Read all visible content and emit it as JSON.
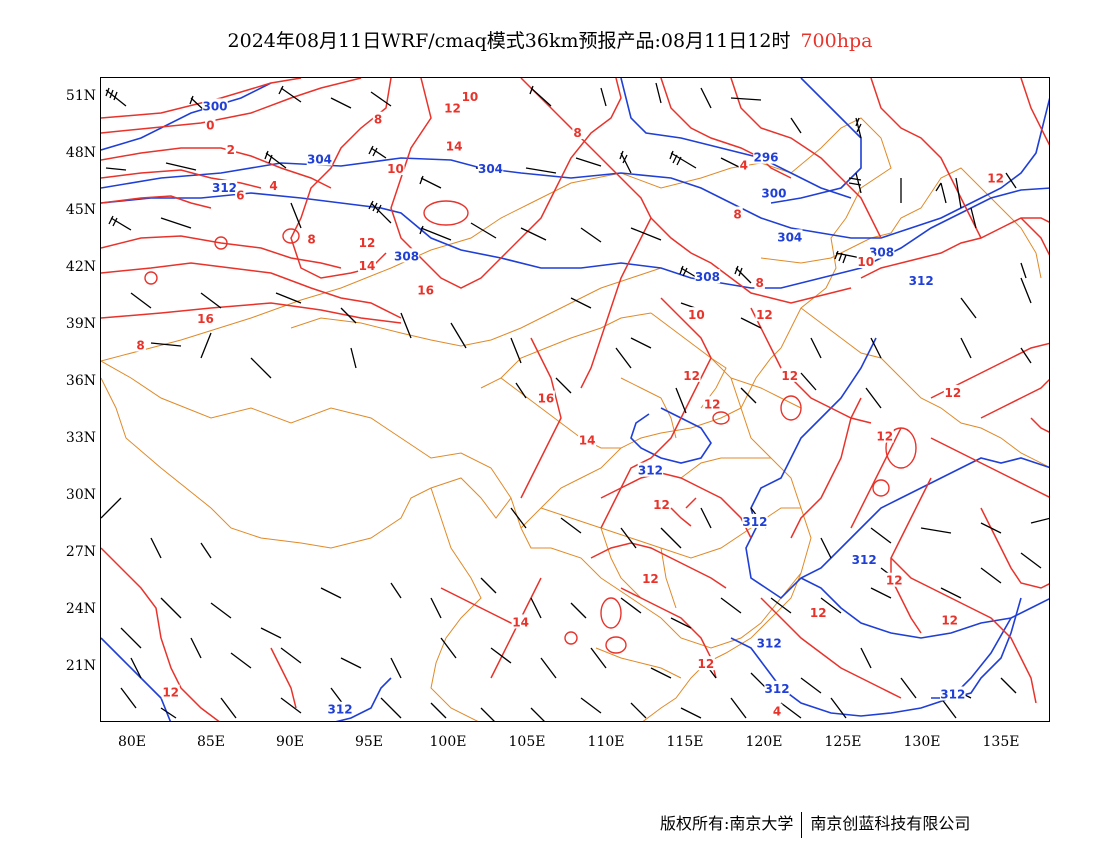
{
  "title": {
    "main": "2024年08月11日WRF/cmaq模式36km预报产品:08月11日12时",
    "level": "700hpa"
  },
  "axes": {
    "lat_labels": [
      "51N",
      "48N",
      "45N",
      "42N",
      "39N",
      "36N",
      "33N",
      "30N",
      "27N",
      "24N",
      "21N"
    ],
    "lon_labels": [
      "80E",
      "85E",
      "90E",
      "95E",
      "100E",
      "105E",
      "110E",
      "115E",
      "120E",
      "125E",
      "130E",
      "135E"
    ]
  },
  "footer": {
    "left": "版权所有:南京大学",
    "right": "南京创蓝科技有限公司"
  },
  "colors": {
    "temperature_contour": "#e8332b",
    "height_contour": "#1f3fd6",
    "boundary": "#e08a28",
    "wind_barb": "#000000"
  },
  "contour_labels": {
    "height": [
      {
        "text": "300",
        "lon": 85.2,
        "lat": 50.7
      },
      {
        "text": "304",
        "lon": 91.8,
        "lat": 47.9
      },
      {
        "text": "304",
        "lon": 102.6,
        "lat": 47.4
      },
      {
        "text": "296",
        "lon": 120.0,
        "lat": 48.0
      },
      {
        "text": "300",
        "lon": 120.5,
        "lat": 46.1
      },
      {
        "text": "304",
        "lon": 121.5,
        "lat": 43.8
      },
      {
        "text": "308",
        "lon": 97.3,
        "lat": 42.8
      },
      {
        "text": "308",
        "lon": 116.3,
        "lat": 41.7
      },
      {
        "text": "308",
        "lon": 127.3,
        "lat": 43.0
      },
      {
        "text": "312",
        "lon": 129.8,
        "lat": 41.5
      },
      {
        "text": "312",
        "lon": 112.7,
        "lat": 31.5
      },
      {
        "text": "312",
        "lon": 119.3,
        "lat": 28.8
      },
      {
        "text": "312",
        "lon": 126.2,
        "lat": 26.8
      },
      {
        "text": "312",
        "lon": 120.2,
        "lat": 22.4
      },
      {
        "text": "312",
        "lon": 120.7,
        "lat": 20.0
      },
      {
        "text": "312",
        "lon": 131.8,
        "lat": 19.7
      },
      {
        "text": "312",
        "lon": 93.1,
        "lat": 18.9
      },
      {
        "text": "312",
        "lon": 85.8,
        "lat": 46.4
      }
    ],
    "temperature": [
      {
        "text": "0",
        "lon": 84.9,
        "lat": 49.7
      },
      {
        "text": "2",
        "lon": 86.2,
        "lat": 48.4
      },
      {
        "text": "4",
        "lon": 88.9,
        "lat": 46.5
      },
      {
        "text": "6",
        "lon": 86.8,
        "lat": 46.0
      },
      {
        "text": "8",
        "lon": 95.5,
        "lat": 50.0
      },
      {
        "text": "8",
        "lon": 91.3,
        "lat": 43.7
      },
      {
        "text": "8",
        "lon": 80.5,
        "lat": 38.1
      },
      {
        "text": "8",
        "lon": 108.1,
        "lat": 49.3
      },
      {
        "text": "8",
        "lon": 118.2,
        "lat": 45.0
      },
      {
        "text": "8",
        "lon": 119.6,
        "lat": 41.4
      },
      {
        "text": "10",
        "lon": 96.6,
        "lat": 47.4
      },
      {
        "text": "10",
        "lon": 101.3,
        "lat": 51.2
      },
      {
        "text": "10",
        "lon": 115.6,
        "lat": 39.7
      },
      {
        "text": "10",
        "lon": 126.3,
        "lat": 42.5
      },
      {
        "text": "12",
        "lon": 100.2,
        "lat": 50.6
      },
      {
        "text": "12",
        "lon": 94.8,
        "lat": 43.5
      },
      {
        "text": "12",
        "lon": 119.9,
        "lat": 39.7
      },
      {
        "text": "12",
        "lon": 115.3,
        "lat": 36.5
      },
      {
        "text": "12",
        "lon": 121.5,
        "lat": 36.5
      },
      {
        "text": "12",
        "lon": 116.6,
        "lat": 35.0
      },
      {
        "text": "12",
        "lon": 127.5,
        "lat": 33.3
      },
      {
        "text": "12",
        "lon": 131.8,
        "lat": 35.6
      },
      {
        "text": "12",
        "lon": 134.5,
        "lat": 46.9
      },
      {
        "text": "12",
        "lon": 113.4,
        "lat": 29.7
      },
      {
        "text": "12",
        "lon": 112.7,
        "lat": 25.8
      },
      {
        "text": "12",
        "lon": 123.3,
        "lat": 24.0
      },
      {
        "text": "12",
        "lon": 128.1,
        "lat": 25.7
      },
      {
        "text": "12",
        "lon": 131.6,
        "lat": 23.6
      },
      {
        "text": "12",
        "lon": 116.2,
        "lat": 21.3
      },
      {
        "text": "12",
        "lon": 82.4,
        "lat": 19.8
      },
      {
        "text": "14",
        "lon": 100.3,
        "lat": 48.6
      },
      {
        "text": "14",
        "lon": 94.8,
        "lat": 42.3
      },
      {
        "text": "14",
        "lon": 108.7,
        "lat": 33.1
      },
      {
        "text": "14",
        "lon": 104.5,
        "lat": 23.5
      },
      {
        "text": "16",
        "lon": 98.5,
        "lat": 41.0
      },
      {
        "text": "16",
        "lon": 84.6,
        "lat": 39.5
      },
      {
        "text": "16",
        "lon": 106.1,
        "lat": 35.3
      },
      {
        "text": "4",
        "lon": 118.6,
        "lat": 47.6
      },
      {
        "text": "4",
        "lon": 120.7,
        "lat": 18.8
      }
    ]
  }
}
